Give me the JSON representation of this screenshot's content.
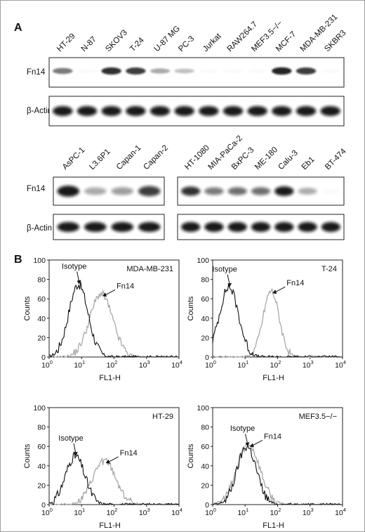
{
  "panel_a": {
    "letter": "A",
    "top_lanes": [
      "HT-29",
      "N-87",
      "SKOV3",
      "T-24",
      "U-87 MG",
      "PC-3",
      "Jurkat",
      "RAW264.7",
      "MEF3.5−/−",
      "MCF-7",
      "MDA-MB-231",
      "SKBR3"
    ],
    "top_fn14_intensity": [
      0.55,
      0.0,
      0.85,
      0.8,
      0.35,
      0.25,
      0.0,
      0.0,
      0.0,
      0.9,
      0.8,
      0.0
    ],
    "bottom_left_lanes": [
      "AsPC-1",
      "L3.6P1",
      "Capan-1",
      "Capan-2"
    ],
    "bottom_left_fn14_intensity": [
      0.95,
      0.35,
      0.4,
      0.8
    ],
    "bottom_right_lanes": [
      "HT-1080",
      "MIA-PaCa-2",
      "BxPC-3",
      "ME-180",
      "Calu-3",
      "Eb1",
      "BT-474"
    ],
    "bottom_right_fn14_intensity": [
      0.85,
      0.55,
      0.6,
      0.6,
      0.95,
      0.35,
      0.0
    ],
    "row_fn14": "Fn14",
    "row_actin": "β-Actin"
  },
  "panel_b": {
    "letter": "B",
    "ylabel": "Counts",
    "xlabel": "FL1-H",
    "y_ticks": [
      "0",
      "20",
      "40",
      "60",
      "80",
      "100"
    ],
    "x_tick_exponents": [
      "0",
      "1",
      "2",
      "3",
      "4"
    ],
    "x_tick_base": "10",
    "isotype_label": "Isotype",
    "fn14_label": "Fn14",
    "plots": [
      {
        "title": "MDA-MB-231",
        "isotype_peak_log": 0.9,
        "fn14_peak_log": 1.6
      },
      {
        "title": "T-24",
        "isotype_peak_log": 0.5,
        "fn14_peak_log": 1.8
      },
      {
        "title": "HT-29",
        "isotype_peak_log": 0.8,
        "fn14_peak_log": 1.7
      },
      {
        "title": "MEF3.5−/−",
        "isotype_peak_log": 1.05,
        "fn14_peak_log": 1.1
      }
    ]
  },
  "chart_data": [
    {
      "type": "line",
      "title": "MDA-MB-231",
      "xlabel": "FL1-H",
      "ylabel": "Counts",
      "x_scale": "log",
      "xlim": [
        1,
        10000
      ],
      "ylim": [
        0,
        100
      ],
      "series": [
        {
          "name": "Isotype",
          "peak_x": 8,
          "peak_y": 75
        },
        {
          "name": "Fn14",
          "peak_x": 40,
          "peak_y": 65
        }
      ]
    },
    {
      "type": "line",
      "title": "T-24",
      "xlabel": "FL1-H",
      "ylabel": "Counts",
      "x_scale": "log",
      "xlim": [
        1,
        10000
      ],
      "ylim": [
        0,
        100
      ],
      "series": [
        {
          "name": "Isotype",
          "peak_x": 3,
          "peak_y": 72
        },
        {
          "name": "Fn14",
          "peak_x": 60,
          "peak_y": 68
        }
      ]
    },
    {
      "type": "line",
      "title": "HT-29",
      "xlabel": "FL1-H",
      "ylabel": "Counts",
      "x_scale": "log",
      "xlim": [
        1,
        10000
      ],
      "ylim": [
        0,
        100
      ],
      "series": [
        {
          "name": "Isotype",
          "peak_x": 7,
          "peak_y": 50
        },
        {
          "name": "Fn14",
          "peak_x": 50,
          "peak_y": 45
        }
      ]
    },
    {
      "type": "line",
      "title": "MEF3.5−/−",
      "xlabel": "FL1-H",
      "ylabel": "Counts",
      "x_scale": "log",
      "xlim": [
        1,
        10000
      ],
      "ylim": [
        0,
        100
      ],
      "series": [
        {
          "name": "Isotype",
          "peak_x": 11,
          "peak_y": 60
        },
        {
          "name": "Fn14",
          "peak_x": 12,
          "peak_y": 62
        }
      ]
    }
  ]
}
